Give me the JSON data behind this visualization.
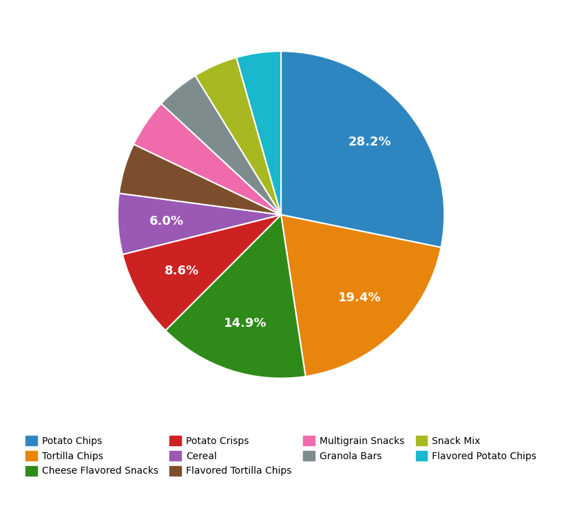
{
  "labels": [
    "Potato Chips",
    "Tortilla Chips",
    "Cheese Flavored Snacks",
    "Potato Crisps",
    "Cereal",
    "Flavored Tortilla Chips",
    "Multigrain Snacks",
    "Granola Bars",
    "Snack Mix",
    "Flavored Potato Chips"
  ],
  "values": [
    28.2,
    19.4,
    14.9,
    8.6,
    6.0,
    5.0,
    4.8,
    4.3,
    4.4,
    4.4
  ],
  "colors": [
    "#2E86C1",
    "#E8850C",
    "#2E8B1A",
    "#CC2222",
    "#9B59B6",
    "#7D4E2D",
    "#F06BAB",
    "#7F8C8D",
    "#A8B820",
    "#1AB8CC"
  ],
  "show_pct_threshold": 5.5,
  "legend_ncol": 4,
  "figsize": [
    8.16,
    7.6
  ],
  "dpi": 100,
  "startangle": 90,
  "legend_fontsize": 10,
  "pctdistance": 0.7
}
